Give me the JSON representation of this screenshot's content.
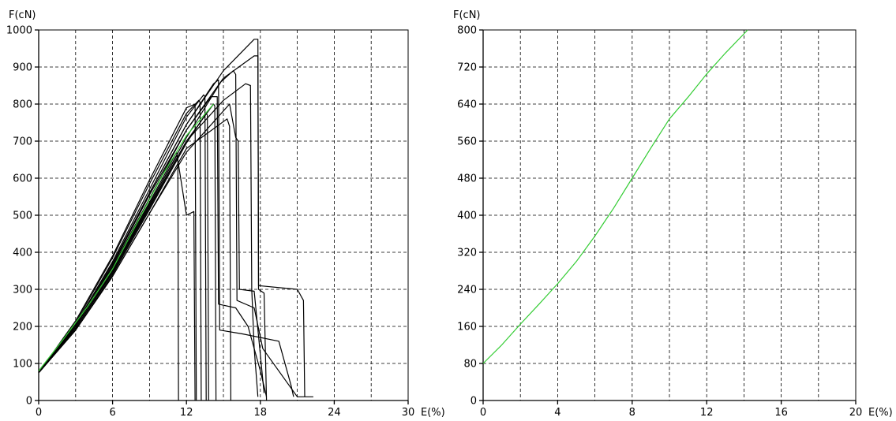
{
  "chart_data": [
    {
      "type": "line",
      "xlabel": "E(%)",
      "ylabel": "F(cN)",
      "xlim": [
        0,
        30
      ],
      "ylim": [
        0,
        1000
      ],
      "xticks": [
        "0",
        "6",
        "12",
        "18",
        "24",
        "30"
      ],
      "yticks": [
        "0",
        "100",
        "200",
        "300",
        "400",
        "500",
        "600",
        "700",
        "800",
        "900",
        "1000"
      ],
      "grid": true,
      "series": [
        {
          "color": "#000000",
          "x": [
            0,
            3,
            6,
            9,
            12,
            15,
            17.5,
            17.8,
            17.85,
            18.3,
            18.5
          ],
          "y": [
            75,
            205,
            370,
            560,
            745,
            890,
            975,
            975,
            300,
            290,
            0
          ]
        },
        {
          "color": "#000000",
          "x": [
            0,
            3,
            6,
            9,
            12,
            15,
            17.5,
            17.8,
            17.85,
            21,
            21.5,
            21.6
          ],
          "y": [
            75,
            200,
            360,
            545,
            730,
            870,
            930,
            930,
            310,
            300,
            270,
            10
          ]
        },
        {
          "color": "#000000",
          "x": [
            0,
            3,
            6,
            9,
            12,
            15,
            16.8,
            17.2,
            17.3,
            17.5,
            17.8
          ],
          "y": [
            75,
            195,
            345,
            525,
            700,
            810,
            855,
            850,
            300,
            140,
            10
          ]
        },
        {
          "color": "#000000",
          "x": [
            0,
            3,
            6,
            9,
            12,
            14.8,
            15.8,
            16.0,
            16.1,
            17.5,
            18.2,
            21,
            22.3
          ],
          "y": [
            75,
            195,
            350,
            530,
            710,
            860,
            890,
            880,
            270,
            250,
            140,
            10,
            10
          ]
        },
        {
          "color": "#000000",
          "x": [
            0,
            3,
            6,
            9,
            12,
            14.0,
            14.5,
            14.6,
            16,
            17,
            18,
            18.5
          ],
          "y": [
            75,
            200,
            365,
            555,
            730,
            820,
            820,
            260,
            250,
            200,
            80,
            10
          ]
        },
        {
          "color": "#000000",
          "x": [
            0,
            3,
            6,
            9,
            12,
            14.2,
            14.6,
            14.7,
            16.5,
            19.5,
            20.5,
            20.7
          ],
          "y": [
            75,
            200,
            365,
            560,
            745,
            855,
            865,
            190,
            180,
            160,
            40,
            10
          ]
        },
        {
          "color": "#000000",
          "x": [
            0,
            3,
            6,
            9,
            12,
            13.4,
            13.5,
            13.6
          ],
          "y": [
            75,
            205,
            375,
            570,
            765,
            825,
            820,
            0
          ]
        },
        {
          "color": "#000000",
          "x": [
            0,
            3,
            6,
            9,
            12,
            13.0,
            13.1,
            13.2
          ],
          "y": [
            75,
            210,
            385,
            585,
            775,
            810,
            805,
            0
          ]
        },
        {
          "color": "#000000",
          "x": [
            0,
            3,
            6,
            9,
            12,
            13.6,
            13.7,
            13.8
          ],
          "y": [
            75,
            190,
            340,
            515,
            695,
            775,
            770,
            0
          ]
        },
        {
          "color": "#000000",
          "x": [
            0,
            3,
            6,
            9,
            11.2,
            11.3,
            11.35
          ],
          "y": [
            75,
            195,
            350,
            530,
            660,
            660,
            0
          ]
        },
        {
          "color": "#000000",
          "x": [
            0,
            3,
            6,
            9,
            11.2,
            12.0,
            12.6,
            12.7
          ],
          "y": [
            75,
            200,
            355,
            535,
            670,
            500,
            510,
            0
          ]
        },
        {
          "color": "#000000",
          "x": [
            0,
            3,
            6,
            9,
            12,
            14.2,
            14.3,
            14.4
          ],
          "y": [
            75,
            195,
            345,
            520,
            700,
            800,
            795,
            0
          ]
        },
        {
          "color": "#000000",
          "x": [
            0,
            3,
            6,
            9,
            12,
            15.3,
            15.5,
            15.6
          ],
          "y": [
            75,
            190,
            335,
            505,
            680,
            760,
            740,
            0
          ]
        },
        {
          "color": "#000000",
          "x": [
            0,
            3,
            6,
            9,
            12,
            15.5,
            16.0,
            16.2,
            16.3,
            17.5,
            18.3
          ],
          "y": [
            75,
            190,
            335,
            505,
            670,
            800,
            710,
            700,
            300,
            295,
            20
          ]
        },
        {
          "color": "#000000",
          "x": [
            0,
            3,
            6,
            9,
            12,
            12.7,
            12.8
          ],
          "y": [
            75,
            215,
            390,
            595,
            790,
            800,
            0
          ]
        },
        {
          "color": "#33cc33",
          "x": [
            0,
            2,
            4,
            6,
            8,
            10,
            12,
            14.2
          ],
          "y": [
            80,
            165,
            255,
            355,
            480,
            605,
            715,
            800
          ]
        }
      ]
    },
    {
      "type": "line",
      "xlabel": "E(%)",
      "ylabel": "F(cN)",
      "xlim": [
        0,
        20
      ],
      "ylim": [
        0,
        800
      ],
      "xticks": [
        "0",
        "4",
        "8",
        "12",
        "16",
        "20"
      ],
      "yticks": [
        "0",
        "80",
        "160",
        "240",
        "320",
        "400",
        "480",
        "560",
        "640",
        "720",
        "800"
      ],
      "grid": true,
      "series": [
        {
          "color": "#33cc33",
          "x": [
            0,
            1,
            2,
            3,
            4,
            5,
            6,
            7,
            8,
            9,
            10,
            11,
            12,
            13,
            14.2
          ],
          "y": [
            80,
            120,
            165,
            208,
            252,
            300,
            355,
            415,
            480,
            545,
            608,
            655,
            705,
            750,
            800
          ]
        }
      ]
    }
  ]
}
